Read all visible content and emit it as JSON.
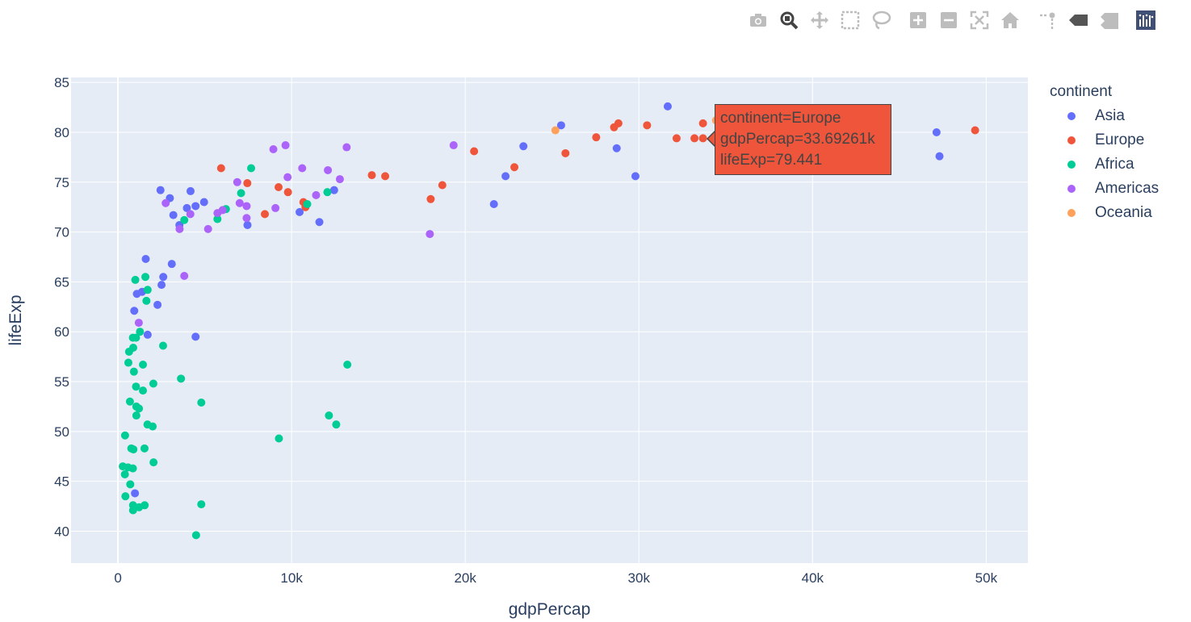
{
  "toolbar": {
    "buttons": [
      {
        "name": "camera-icon"
      },
      {
        "name": "zoom-icon"
      },
      {
        "name": "pan-icon"
      },
      {
        "name": "box-select-icon"
      },
      {
        "name": "lasso-select-icon"
      },
      {
        "name": "zoom-in-icon"
      },
      {
        "name": "zoom-out-icon"
      },
      {
        "name": "autoscale-icon"
      },
      {
        "name": "reset-axes-icon"
      },
      {
        "name": "spike-lines-icon"
      },
      {
        "name": "hover-closest-icon"
      },
      {
        "name": "hover-compare-icon"
      },
      {
        "name": "plotly-logo-icon"
      }
    ]
  },
  "legend": {
    "title": "continent",
    "items": [
      {
        "label": "Asia",
        "color": "#636efa"
      },
      {
        "label": "Europe",
        "color": "#ef553b"
      },
      {
        "label": "Africa",
        "color": "#00cc96"
      },
      {
        "label": "Americas",
        "color": "#ab63fa"
      },
      {
        "label": "Oceania",
        "color": "#ffa15a"
      }
    ]
  },
  "tooltip": {
    "line1": "continent=Europe",
    "line2": "gdpPercap=33.69261k",
    "line3": "lifeExp=79.441"
  },
  "chart_data": {
    "type": "scatter",
    "xlabel": "gdpPercap",
    "ylabel": "lifeExp",
    "xlim": [
      -2700,
      52400
    ],
    "ylim": [
      36.8,
      85.5
    ],
    "xticks": [
      0,
      10000,
      20000,
      30000,
      40000,
      50000
    ],
    "xtick_labels": [
      "0",
      "10k",
      "20k",
      "30k",
      "40k",
      "50k"
    ],
    "yticks": [
      40,
      45,
      50,
      55,
      60,
      65,
      70,
      75,
      80,
      85
    ],
    "grid": true,
    "legend_position": "right",
    "series": [
      {
        "name": "Asia",
        "color": "#636efa",
        "points": [
          [
            31660,
            82.6
          ],
          [
            25520,
            80.7
          ],
          [
            47140,
            80.0
          ],
          [
            47310,
            77.6
          ],
          [
            28720,
            78.4
          ],
          [
            23350,
            78.6
          ],
          [
            22320,
            75.6
          ],
          [
            29800,
            75.6
          ],
          [
            21650,
            72.8
          ],
          [
            12450,
            74.2
          ],
          [
            10460,
            72.0
          ],
          [
            11600,
            71.0
          ],
          [
            7460,
            70.7
          ],
          [
            4960,
            73.0
          ],
          [
            4470,
            72.6
          ],
          [
            3970,
            72.4
          ],
          [
            4180,
            74.1
          ],
          [
            3190,
            71.7
          ],
          [
            3540,
            70.7
          ],
          [
            2450,
            74.2
          ],
          [
            2280,
            62.7
          ],
          [
            2610,
            65.5
          ],
          [
            3100,
            66.8
          ],
          [
            1600,
            67.3
          ],
          [
            1390,
            64.0
          ],
          [
            1090,
            63.8
          ],
          [
            940,
            62.1
          ],
          [
            1710,
            59.7
          ],
          [
            4470,
            59.5
          ],
          [
            2510,
            64.7
          ],
          [
            980,
            43.8
          ],
          [
            2990,
            73.4
          ]
        ]
      },
      {
        "name": "Europe",
        "color": "#ef553b",
        "points": [
          [
            49360,
            80.2
          ],
          [
            36130,
            81.7
          ],
          [
            35280,
            80.7
          ],
          [
            33690,
            80.9
          ],
          [
            33690,
            79.4
          ],
          [
            33200,
            79.4
          ],
          [
            32170,
            79.4
          ],
          [
            30470,
            80.7
          ],
          [
            28820,
            80.9
          ],
          [
            28570,
            80.5
          ],
          [
            27540,
            79.5
          ],
          [
            25770,
            77.9
          ],
          [
            22830,
            76.5
          ],
          [
            20510,
            78.1
          ],
          [
            18680,
            74.7
          ],
          [
            18010,
            73.3
          ],
          [
            15390,
            75.6
          ],
          [
            14620,
            75.7
          ],
          [
            10800,
            72.5
          ],
          [
            10680,
            73.0
          ],
          [
            9790,
            74.0
          ],
          [
            9250,
            74.5
          ],
          [
            8460,
            71.8
          ],
          [
            7450,
            74.9
          ],
          [
            5940,
            76.4
          ]
        ]
      },
      {
        "name": "Africa",
        "color": "#00cc96",
        "points": [
          [
            7670,
            76.4
          ],
          [
            7090,
            73.9
          ],
          [
            6220,
            72.3
          ],
          [
            5730,
            71.3
          ],
          [
            3820,
            71.2
          ],
          [
            12060,
            74.0
          ],
          [
            10900,
            72.8
          ],
          [
            13210,
            56.7
          ],
          [
            12150,
            51.6
          ],
          [
            12570,
            50.7
          ],
          [
            9270,
            49.3
          ],
          [
            4800,
            52.9
          ],
          [
            3630,
            55.3
          ],
          [
            2040,
            54.8
          ],
          [
            2600,
            58.6
          ],
          [
            1580,
            65.5
          ],
          [
            1000,
            65.2
          ],
          [
            1710,
            64.2
          ],
          [
            1640,
            63.1
          ],
          [
            1270,
            60.0
          ],
          [
            860,
            59.4
          ],
          [
            1040,
            59.4
          ],
          [
            880,
            58.4
          ],
          [
            640,
            58.0
          ],
          [
            1440,
            56.7
          ],
          [
            600,
            56.9
          ],
          [
            920,
            56.0
          ],
          [
            1040,
            54.5
          ],
          [
            1440,
            54.1
          ],
          [
            1210,
            52.3
          ],
          [
            1060,
            52.5
          ],
          [
            690,
            53.0
          ],
          [
            1060,
            51.6
          ],
          [
            1700,
            50.7
          ],
          [
            2000,
            50.5
          ],
          [
            410,
            49.6
          ],
          [
            770,
            48.3
          ],
          [
            890,
            48.2
          ],
          [
            1530,
            48.3
          ],
          [
            2050,
            46.9
          ],
          [
            280,
            46.5
          ],
          [
            580,
            46.4
          ],
          [
            860,
            46.3
          ],
          [
            400,
            45.7
          ],
          [
            710,
            44.7
          ],
          [
            430,
            43.5
          ],
          [
            870,
            42.6
          ],
          [
            1220,
            42.4
          ],
          [
            1540,
            42.6
          ],
          [
            870,
            42.1
          ],
          [
            4800,
            42.7
          ],
          [
            4500,
            39.6
          ]
        ]
      },
      {
        "name": "Americas",
        "color": "#ab63fa",
        "points": [
          [
            36320,
            80.7
          ],
          [
            19330,
            78.7
          ],
          [
            17960,
            69.8
          ],
          [
            13170,
            78.5
          ],
          [
            12780,
            75.3
          ],
          [
            12090,
            76.2
          ],
          [
            11410,
            73.7
          ],
          [
            10610,
            76.4
          ],
          [
            9770,
            75.5
          ],
          [
            9650,
            78.7
          ],
          [
            9070,
            72.4
          ],
          [
            8950,
            78.3
          ],
          [
            7410,
            72.6
          ],
          [
            7410,
            71.4
          ],
          [
            7010,
            72.9
          ],
          [
            6870,
            75.0
          ],
          [
            6030,
            72.2
          ],
          [
            5730,
            71.9
          ],
          [
            5190,
            70.3
          ],
          [
            4170,
            71.8
          ],
          [
            3820,
            65.6
          ],
          [
            3550,
            70.3
          ],
          [
            2750,
            72.9
          ],
          [
            1200,
            60.9
          ]
        ]
      },
      {
        "name": "Oceania",
        "color": "#ffa15a",
        "points": [
          [
            34440,
            81.2
          ],
          [
            25190,
            80.2
          ]
        ]
      }
    ]
  }
}
